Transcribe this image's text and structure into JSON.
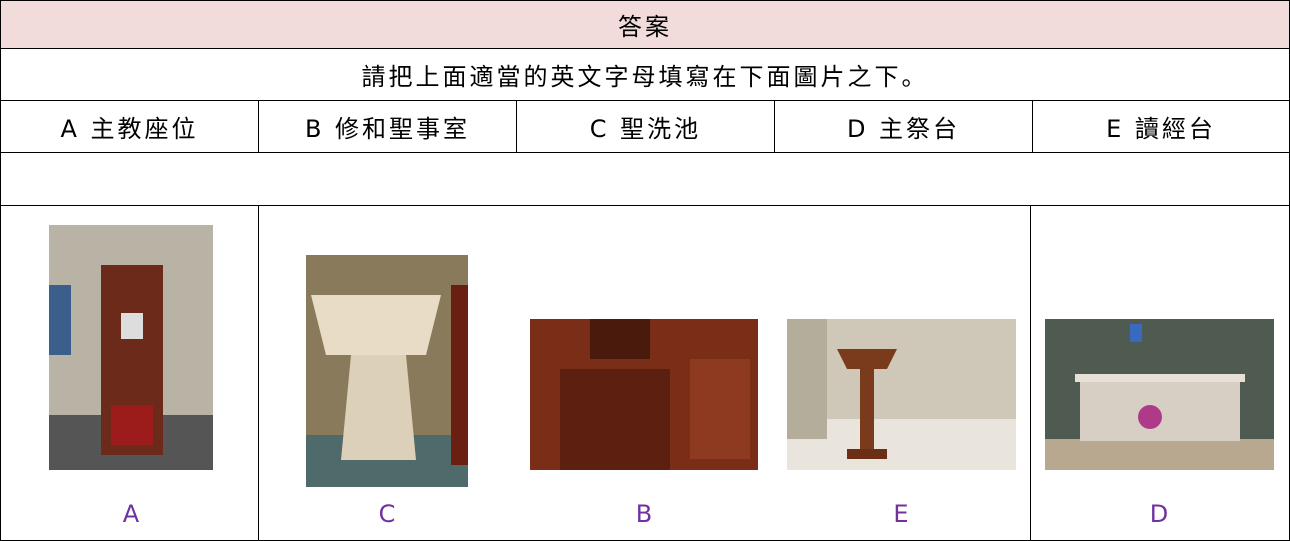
{
  "header": {
    "title": "答案"
  },
  "instruction": "請把上面適當的英文字母填寫在下面圖片之下。",
  "options": [
    "A 主教座位",
    "B 修和聖事室",
    "C 聖洗池",
    "D 主祭台",
    "E 讀經台"
  ],
  "answers": [
    "A",
    "C",
    "B",
    "E",
    "D"
  ]
}
